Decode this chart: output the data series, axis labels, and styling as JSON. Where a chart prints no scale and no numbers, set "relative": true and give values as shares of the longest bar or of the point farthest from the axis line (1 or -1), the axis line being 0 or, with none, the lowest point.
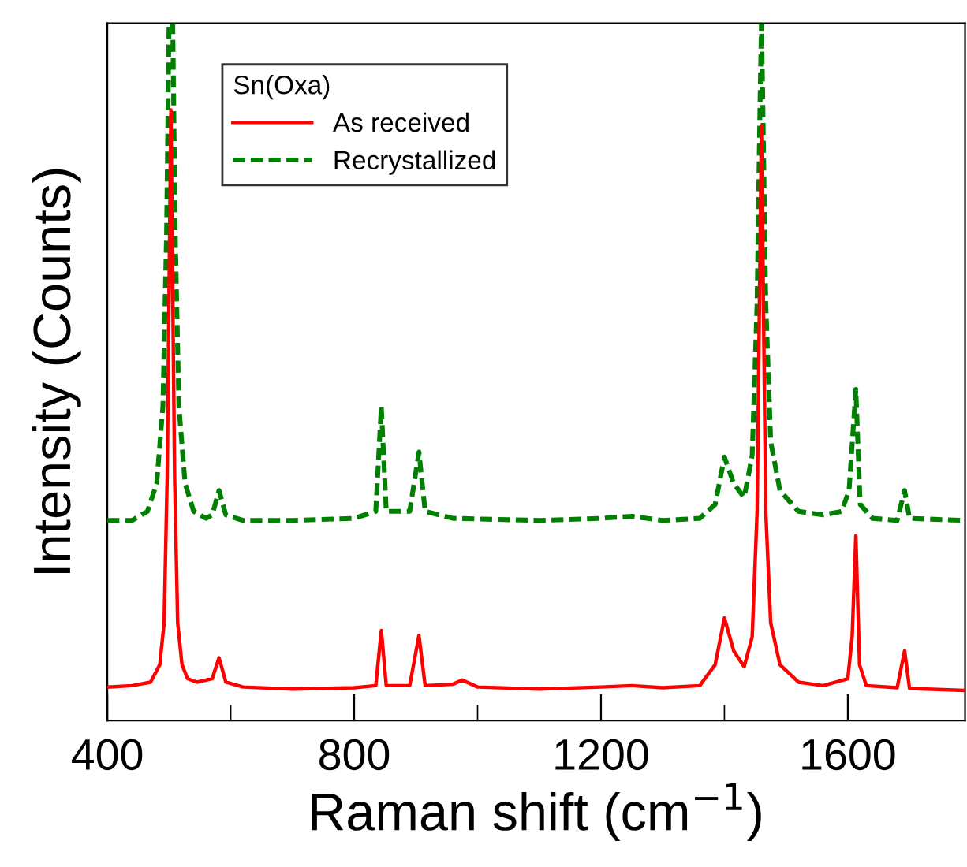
{
  "chart_data": {
    "type": "line",
    "relative": true,
    "xlabel": "Raman shift (cm$^{−1}$)",
    "ylabel": "Intensity (Counts)",
    "legend_title": "Sn(Oxa)",
    "legend": "top",
    "grid": false,
    "xlim": [
      400,
      1790
    ],
    "xticks": [
      400,
      {
        "value": 600,
        "label": null
      },
      800,
      {
        "value": 1000,
        "label": null
      },
      1200,
      {
        "value": 1400,
        "label": null
      },
      1600
    ],
    "series": [
      {
        "name": "As received",
        "color": "#ff0000",
        "line_style": "solid",
        "x": [
          400,
          440,
          470,
          485,
          492,
          497,
          503,
          509,
          514,
          521,
          530,
          545,
          570,
          581,
          592,
          620,
          700,
          800,
          835,
          844,
          852,
          890,
          905,
          915,
          960,
          975,
          1000,
          1100,
          1200,
          1250,
          1300,
          1360,
          1385,
          1400,
          1415,
          1432,
          1445,
          1453,
          1460,
          1467,
          1475,
          1490,
          1520,
          1560,
          1600,
          1607,
          1613,
          1619,
          1630,
          1680,
          1692,
          1700,
          1790
        ],
        "values": [
          0.048,
          0.05,
          0.055,
          0.08,
          0.14,
          0.35,
          0.876,
          0.35,
          0.14,
          0.08,
          0.06,
          0.055,
          0.06,
          0.09,
          0.055,
          0.048,
          0.045,
          0.047,
          0.05,
          0.129,
          0.05,
          0.05,
          0.122,
          0.05,
          0.052,
          0.058,
          0.048,
          0.045,
          0.048,
          0.05,
          0.047,
          0.05,
          0.08,
          0.147,
          0.1,
          0.077,
          0.12,
          0.3,
          0.853,
          0.3,
          0.14,
          0.08,
          0.055,
          0.05,
          0.06,
          0.12,
          0.265,
          0.08,
          0.05,
          0.047,
          0.1,
          0.046,
          0.043
        ]
      },
      {
        "name": "Recrystallized",
        "color": "#008000",
        "line_style": "dashed",
        "x": [
          400,
          440,
          465,
          480,
          490,
          496,
          500,
          503,
          506,
          510,
          516,
          526,
          540,
          560,
          570,
          581,
          592,
          620,
          700,
          800,
          835,
          844,
          852,
          890,
          905,
          915,
          960,
          1100,
          1200,
          1250,
          1300,
          1360,
          1385,
          1400,
          1415,
          1432,
          1445,
          1453,
          1458,
          1460,
          1462,
          1467,
          1475,
          1490,
          1520,
          1560,
          1590,
          1602,
          1613,
          1620,
          1640,
          1680,
          1692,
          1700,
          1790
        ],
        "values": [
          0.287,
          0.287,
          0.3,
          0.34,
          0.45,
          0.7,
          1.0,
          1.0,
          1.0,
          0.7,
          0.45,
          0.34,
          0.3,
          0.29,
          0.295,
          0.33,
          0.295,
          0.287,
          0.287,
          0.29,
          0.3,
          0.45,
          0.3,
          0.3,
          0.385,
          0.3,
          0.29,
          0.287,
          0.29,
          0.293,
          0.287,
          0.29,
          0.31,
          0.378,
          0.34,
          0.32,
          0.38,
          0.6,
          0.9,
          1.0,
          0.9,
          0.6,
          0.4,
          0.33,
          0.3,
          0.295,
          0.3,
          0.33,
          0.475,
          0.31,
          0.29,
          0.287,
          0.33,
          0.29,
          0.287
        ]
      }
    ]
  }
}
